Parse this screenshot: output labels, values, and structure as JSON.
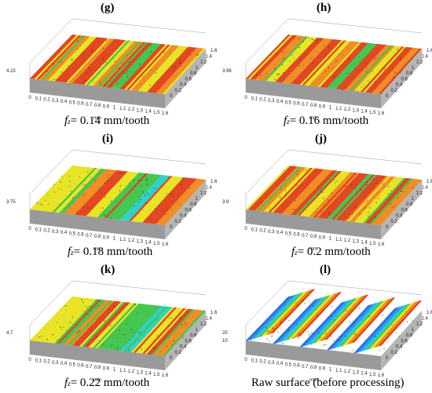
{
  "panels": [
    {
      "id": "g",
      "label": "(g)",
      "caption_prefix": "f",
      "caption_sub": "z",
      "caption_value": "= 0.14 mm/tooth",
      "z_label": "4.15",
      "surface": "processed-red-yellow",
      "mm_label": "mm",
      "x_ticks": [
        "0",
        "0.1",
        "0.2",
        "0.3",
        "0.4",
        "0.5",
        "0.6",
        "0.7",
        "0.8",
        "0.9",
        "1",
        "1.1",
        "1.2",
        "1.3",
        "1.4",
        "1.5",
        "1.6"
      ],
      "y_ticks": [
        "0",
        "0.2",
        "0.4",
        "0.6",
        "0.8",
        "1",
        "1.2",
        "1.4",
        "1.6"
      ]
    },
    {
      "id": "h",
      "label": "(h)",
      "caption_prefix": "f",
      "caption_sub": "z",
      "caption_value": "= 0.16 mm/tooth",
      "z_label": "3.96",
      "surface": "processed-red-yellow",
      "mm_label": "mm",
      "x_ticks": [
        "0",
        "0.1",
        "0.2",
        "0.3",
        "0.4",
        "0.5",
        "0.6",
        "0.7",
        "0.8",
        "0.9",
        "1",
        "1.1",
        "1.2",
        "1.3",
        "1.4",
        "1.5",
        "1.6"
      ],
      "y_ticks": [
        "0",
        "0.2",
        "0.4",
        "0.6",
        "0.8",
        "1",
        "1.2",
        "1.4",
        "1.6"
      ]
    },
    {
      "id": "i",
      "label": "(i)",
      "caption_prefix": "f",
      "caption_sub": "z",
      "caption_value": "= 0.18 mm/tooth",
      "z_label": "3.75",
      "surface": "processed-mixed",
      "mm_label": "mm",
      "x_ticks": [
        "0",
        "0.1",
        "0.2",
        "0.3",
        "0.4",
        "0.5",
        "0.6",
        "0.7",
        "0.8",
        "0.9",
        "1",
        "1.1",
        "1.2",
        "1.3",
        "1.4",
        "1.5",
        "1.6"
      ],
      "y_ticks": [
        "0",
        "0.2",
        "0.4",
        "0.6",
        "0.8",
        "1",
        "1.2",
        "1.4",
        "1.6"
      ]
    },
    {
      "id": "j",
      "label": "(j)",
      "caption_prefix": "f",
      "caption_sub": "z",
      "caption_value": "= 0.2 mm/tooth",
      "z_label": "3.9",
      "surface": "processed-red-yellow",
      "mm_label": "mm",
      "x_ticks": [
        "0",
        "0.1",
        "0.2",
        "0.3",
        "0.4",
        "0.5",
        "0.6",
        "0.7",
        "0.8",
        "0.9",
        "1",
        "1.1",
        "1.2",
        "1.3",
        "1.4",
        "1.5",
        "1.6"
      ],
      "y_ticks": [
        "0",
        "0.2",
        "0.4",
        "0.6",
        "0.8",
        "1",
        "1.2",
        "1.4",
        "1.6"
      ]
    },
    {
      "id": "k",
      "label": "(k)",
      "caption_prefix": "f",
      "caption_sub": "z",
      "caption_value": "= 0.22 mm/tooth",
      "z_label": "4.7",
      "surface": "processed-mixed",
      "mm_label": "mm",
      "x_ticks": [
        "0",
        "0.1",
        "0.2",
        "0.3",
        "0.4",
        "0.5",
        "0.6",
        "0.7",
        "0.8",
        "0.9",
        "1",
        "1.1",
        "1.2",
        "1.3",
        "1.4",
        "1.5",
        "1.6"
      ],
      "y_ticks": [
        "0",
        "0.2",
        "0.4",
        "0.6",
        "0.8",
        "1",
        "1.2",
        "1.4",
        "1.6"
      ]
    },
    {
      "id": "l",
      "label": "(l)",
      "caption_prefix": "",
      "caption_sub": "",
      "caption_value": "Raw surface (before processing)",
      "z_label": "20",
      "z_label2": "10",
      "surface": "raw-rainbow-ridges",
      "mm_label": "mm",
      "x_ticks": [
        "0",
        "0.1",
        "0.2",
        "0.3",
        "0.4",
        "0.5",
        "0.6",
        "0.7",
        "0.8",
        "0.9",
        "1",
        "1.1",
        "1.2",
        "1.3",
        "1.4",
        "1.5",
        "1.6"
      ],
      "y_ticks": [
        "0",
        "0.2",
        "0.4",
        "0.6",
        "0.8",
        "1",
        "1.2",
        "1.4",
        "1.6"
      ]
    }
  ],
  "colors": {
    "red": "#e2401c",
    "orange": "#f08a1e",
    "yellow": "#e8e31e",
    "green": "#3fc44b",
    "cyan": "#2ad0c8",
    "blue": "#2a6ff0",
    "gray": "#9a9a9a"
  }
}
